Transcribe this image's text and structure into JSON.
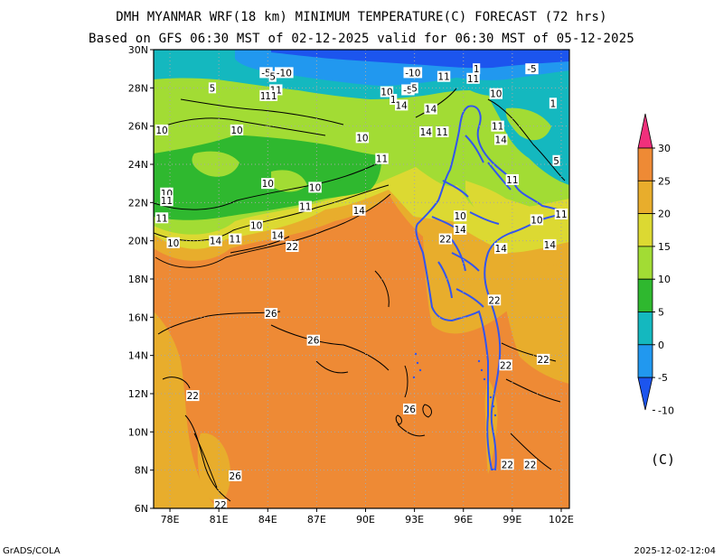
{
  "title_line1": "DMH MYANMAR WRF(18 km) MINIMUM TEMPERATURE(C) FORECAST (72 hrs)",
  "title_line2": "Based on GFS 06:30 MST of 02-12-2025 valid for 06:30 MST of 05-12-2025",
  "lat_labels": [
    "30N",
    "28N",
    "26N",
    "24N",
    "22N",
    "20N",
    "18N",
    "16N",
    "14N",
    "12N",
    "10N",
    "8N",
    "6N"
  ],
  "lon_labels": [
    "78E",
    "81E",
    "84E",
    "87E",
    "90E",
    "93E",
    "96E",
    "99E",
    "102E"
  ],
  "colorbar": {
    "ticks": [
      "30",
      "25",
      "20",
      "15",
      "10",
      "5",
      "0",
      "-5",
      "-10"
    ],
    "colors": [
      "#f0307c",
      "#ee8a35",
      "#e8ad2c",
      "#dcd932",
      "#a2dc34",
      "#2fb82f",
      "#14b8bf",
      "#2198ef",
      "#1c55ee"
    ],
    "unit": "(C)"
  },
  "contour_labels": [
    {
      "t": "-5",
      "lon": 83.9,
      "lat": 28.8
    },
    {
      "t": "-10",
      "lon": 85.0,
      "lat": 28.8
    },
    {
      "t": "5",
      "lon": 84.3,
      "lat": 28.6
    },
    {
      "t": "5",
      "lon": 80.6,
      "lat": 28.0
    },
    {
      "t": "11",
      "lon": 84.5,
      "lat": 27.9
    },
    {
      "t": "10",
      "lon": 83.9,
      "lat": 27.6
    },
    {
      "t": "11",
      "lon": 84.2,
      "lat": 27.6
    },
    {
      "t": "10",
      "lon": 91.3,
      "lat": 27.8
    },
    {
      "t": "-10",
      "lon": 92.9,
      "lat": 28.8
    },
    {
      "t": "-5",
      "lon": 92.6,
      "lat": 27.9
    },
    {
      "t": "5",
      "lon": 93.0,
      "lat": 28.0
    },
    {
      "t": "1",
      "lon": 91.7,
      "lat": 27.4
    },
    {
      "t": "14",
      "lon": 92.2,
      "lat": 27.1
    },
    {
      "t": "14",
      "lon": 94.0,
      "lat": 26.9
    },
    {
      "t": "11",
      "lon": 94.8,
      "lat": 28.6
    },
    {
      "t": "1",
      "lon": 96.8,
      "lat": 29.0
    },
    {
      "t": "11",
      "lon": 96.6,
      "lat": 28.5
    },
    {
      "t": "10",
      "lon": 98.0,
      "lat": 27.7
    },
    {
      "t": "-5",
      "lon": 100.2,
      "lat": 29.0
    },
    {
      "t": "1",
      "lon": 101.5,
      "lat": 27.2
    },
    {
      "t": "11",
      "lon": 98.1,
      "lat": 26.0
    },
    {
      "t": "10",
      "lon": 77.5,
      "lat": 25.8
    },
    {
      "t": "10",
      "lon": 82.1,
      "lat": 25.8
    },
    {
      "t": "14",
      "lon": 93.7,
      "lat": 25.7
    },
    {
      "t": "11",
      "lon": 94.7,
      "lat": 25.7
    },
    {
      "t": "10",
      "lon": 89.8,
      "lat": 25.4
    },
    {
      "t": "14",
      "lon": 98.3,
      "lat": 25.3
    },
    {
      "t": "11",
      "lon": 91.0,
      "lat": 24.3
    },
    {
      "t": "5",
      "lon": 101.7,
      "lat": 24.2
    },
    {
      "t": "11",
      "lon": 99.0,
      "lat": 23.2
    },
    {
      "t": "10",
      "lon": 84.0,
      "lat": 23.0
    },
    {
      "t": "10",
      "lon": 86.9,
      "lat": 22.8
    },
    {
      "t": "10",
      "lon": 77.8,
      "lat": 22.5
    },
    {
      "t": "11",
      "lon": 77.8,
      "lat": 22.1
    },
    {
      "t": "11",
      "lon": 86.3,
      "lat": 21.8
    },
    {
      "t": "14",
      "lon": 89.6,
      "lat": 21.6
    },
    {
      "t": "11",
      "lon": 77.5,
      "lat": 21.2
    },
    {
      "t": "10",
      "lon": 83.3,
      "lat": 20.8
    },
    {
      "t": "10",
      "lon": 95.8,
      "lat": 21.3
    },
    {
      "t": "10",
      "lon": 100.5,
      "lat": 21.1
    },
    {
      "t": "11",
      "lon": 102.0,
      "lat": 21.4
    },
    {
      "t": "10",
      "lon": 78.2,
      "lat": 19.9
    },
    {
      "t": "14",
      "lon": 80.8,
      "lat": 20.0
    },
    {
      "t": "11",
      "lon": 82.0,
      "lat": 20.1
    },
    {
      "t": "14",
      "lon": 84.6,
      "lat": 20.3
    },
    {
      "t": "22",
      "lon": 85.5,
      "lat": 19.7
    },
    {
      "t": "22",
      "lon": 94.9,
      "lat": 20.1
    },
    {
      "t": "14",
      "lon": 95.8,
      "lat": 20.6
    },
    {
      "t": "14",
      "lon": 98.3,
      "lat": 19.6
    },
    {
      "t": "14",
      "lon": 101.3,
      "lat": 19.8
    },
    {
      "t": "22",
      "lon": 97.9,
      "lat": 16.9
    },
    {
      "t": "26",
      "lon": 84.2,
      "lat": 16.2
    },
    {
      "t": "26",
      "lon": 86.8,
      "lat": 14.8
    },
    {
      "t": "22",
      "lon": 100.9,
      "lat": 13.8
    },
    {
      "t": "22",
      "lon": 98.6,
      "lat": 13.5
    },
    {
      "t": "22",
      "lon": 79.4,
      "lat": 11.9
    },
    {
      "t": "26",
      "lon": 92.7,
      "lat": 11.2
    },
    {
      "t": "22",
      "lon": 98.7,
      "lat": 8.3
    },
    {
      "t": "22",
      "lon": 100.1,
      "lat": 8.3
    },
    {
      "t": "26",
      "lon": 82.0,
      "lat": 7.7
    },
    {
      "t": "22",
      "lon": 81.1,
      "lat": 6.2
    }
  ],
  "footer_left": "GrADS/COLA",
  "footer_right": "2025-12-02-12:04"
}
